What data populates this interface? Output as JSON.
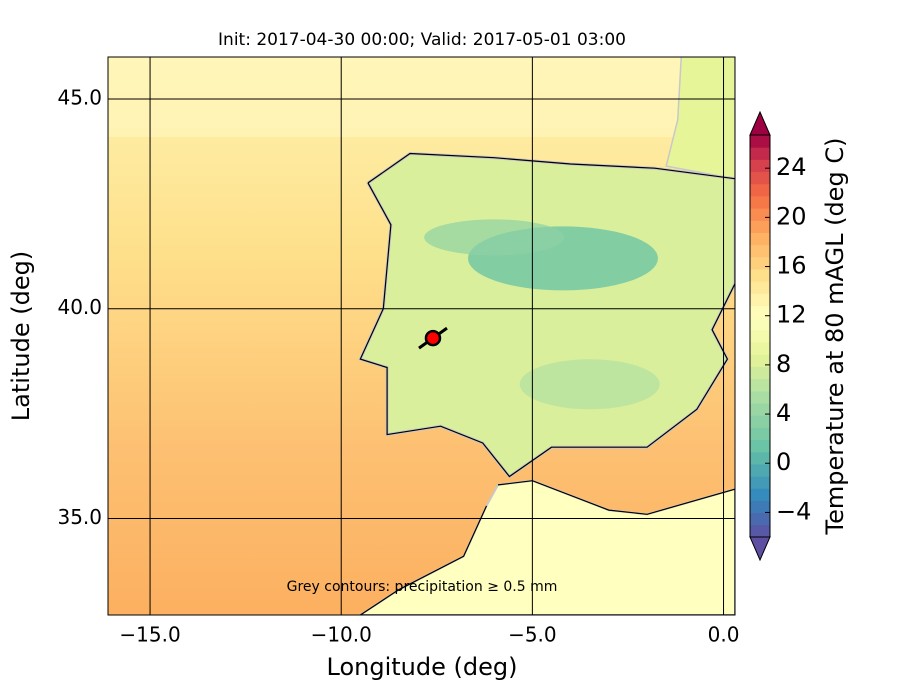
{
  "chart_data": {
    "type": "map",
    "title": "Init: 2017-04-30 00:00; Valid: 2017-05-01 03:00",
    "x_label": "Longitude (deg)",
    "y_label": "Latitude (deg)",
    "xlim": [
      -16.1,
      0.3
    ],
    "ylim": [
      32.7,
      46.0
    ],
    "xticks": [
      {
        "value": -15,
        "label": "−15.0"
      },
      {
        "value": -10,
        "label": "−10.0"
      },
      {
        "value": -5,
        "label": "−5.0"
      },
      {
        "value": 0,
        "label": "0.0"
      }
    ],
    "yticks": [
      {
        "value": 35,
        "label": "35.0"
      },
      {
        "value": 40,
        "label": "40.0"
      },
      {
        "value": 45,
        "label": "45.0"
      }
    ],
    "grid": true,
    "annotation": "Grey contours: precipitation ≥ 0.5 mm",
    "marker": {
      "x": -7.6,
      "y": 39.3,
      "color": "#ff0000"
    },
    "colorbar": {
      "label": "Temperature at 80 mAGL (deg C)",
      "lim": [
        -6,
        26.7
      ],
      "ticks": [
        {
          "value": -4,
          "label": "−4"
        },
        0,
        4,
        8,
        12,
        16,
        20,
        24
      ]
    }
  }
}
